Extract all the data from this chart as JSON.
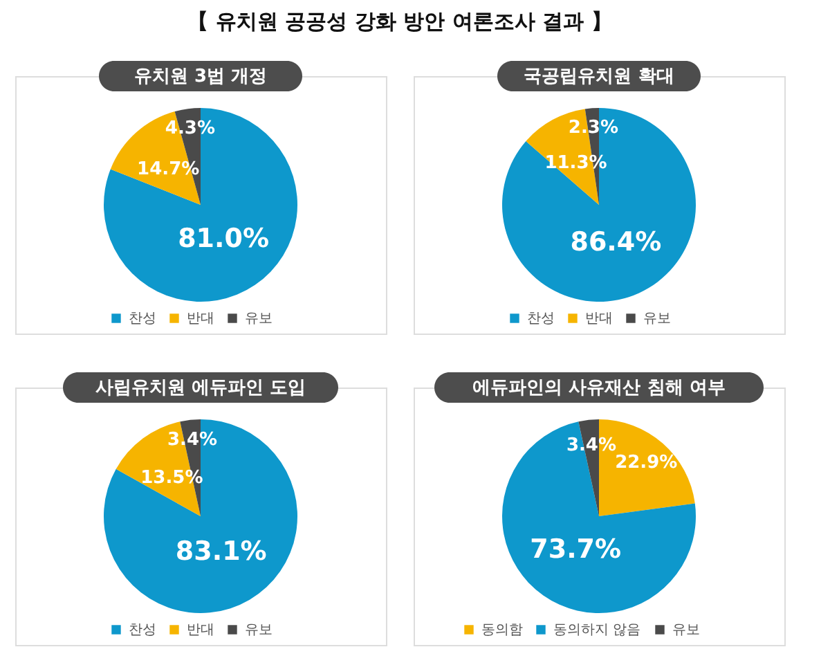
{
  "chart_data": [
    {
      "type": "pie",
      "title": "유치원 3법 개정",
      "annotations": [
        "【 유치원 공공성 강화 방안 여론조사 결과 】"
      ],
      "categories": [
        "찬성",
        "반대",
        "유보"
      ],
      "values": [
        81.0,
        14.7,
        4.3
      ],
      "colors": [
        "#0e98cc",
        "#f6b400",
        "#4a4a4a"
      ],
      "value_labels": [
        "81.0%",
        "14.7%",
        "4.3%"
      ],
      "legend": "bottom"
    },
    {
      "type": "pie",
      "title": "국공립유치원 확대",
      "categories": [
        "찬성",
        "반대",
        "유보"
      ],
      "values": [
        86.4,
        11.3,
        2.3
      ],
      "colors": [
        "#0e98cc",
        "#f6b400",
        "#4a4a4a"
      ],
      "value_labels": [
        "86.4%",
        "11.3%",
        "2.3%"
      ],
      "legend": "bottom"
    },
    {
      "type": "pie",
      "title": "사립유치원 에듀파인 도입",
      "categories": [
        "찬성",
        "반대",
        "유보"
      ],
      "values": [
        83.1,
        13.5,
        3.4
      ],
      "colors": [
        "#0e98cc",
        "#f6b400",
        "#4a4a4a"
      ],
      "value_labels": [
        "83.1%",
        "13.5%",
        "3.4%"
      ],
      "legend": "bottom"
    },
    {
      "type": "pie",
      "title": "에듀파인의 사유재산 침해 여부",
      "categories": [
        "동의함",
        "동의하지 않음",
        "유보"
      ],
      "values": [
        22.9,
        73.7,
        3.4
      ],
      "colors": [
        "#f6b400",
        "#0e98cc",
        "#4a4a4a"
      ],
      "value_labels": [
        "22.9%",
        "73.7%",
        "3.4%"
      ],
      "legend": "bottom"
    }
  ]
}
